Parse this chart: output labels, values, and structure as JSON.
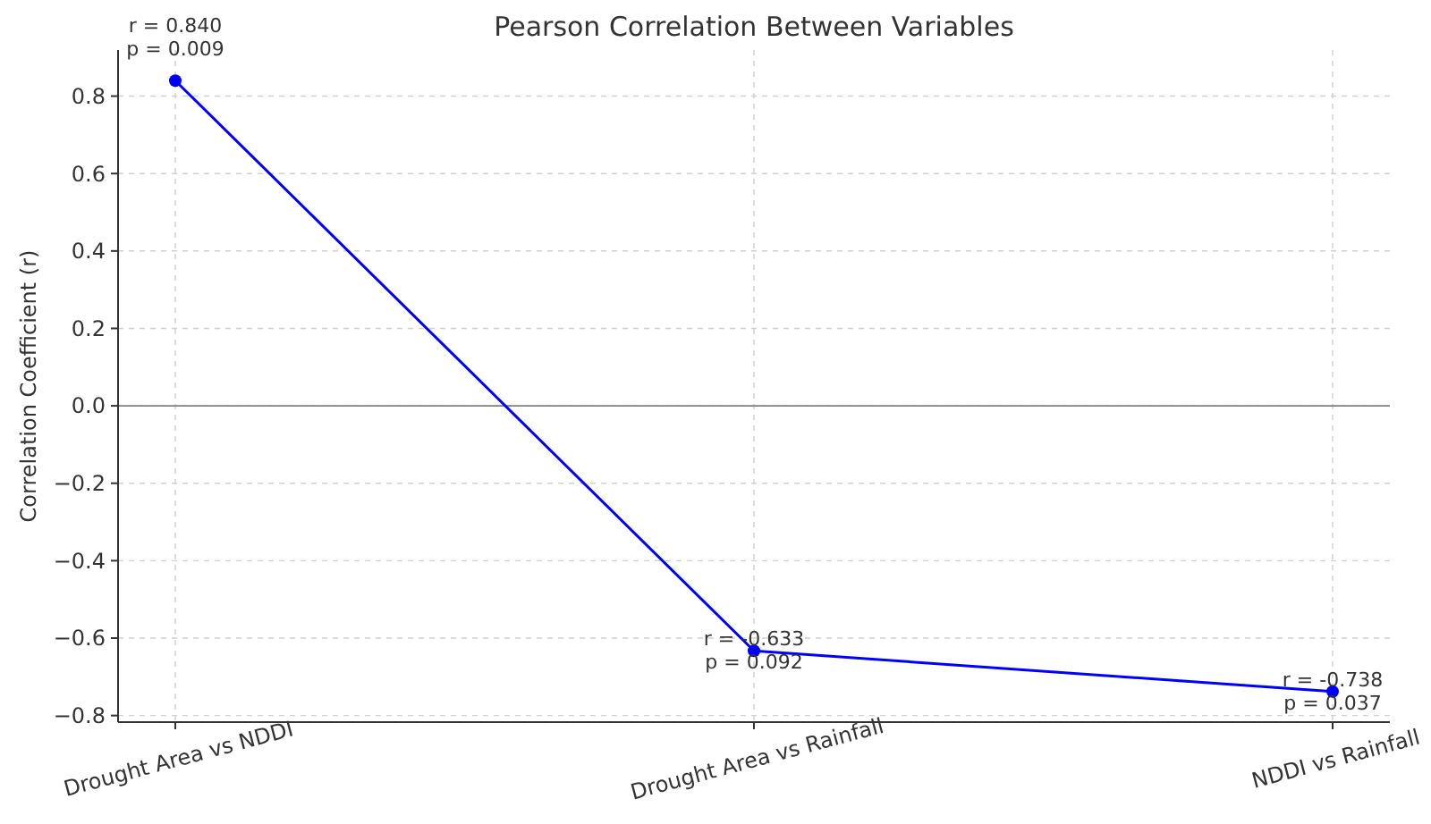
{
  "chart_data": {
    "type": "line",
    "title": "Pearson Correlation Between Variables",
    "ylabel": "Correlation Coefficient (r)",
    "categories": [
      "Drought Area vs NDDI",
      "Drought Area vs Rainfall",
      "NDDI vs Rainfall"
    ],
    "series": [
      {
        "color": "#0000ff",
        "values": [
          0.84,
          -0.633,
          -0.738
        ]
      }
    ],
    "ylim": [
      -0.817,
      0.919
    ],
    "yticks": [
      {
        "value": -0.8,
        "label": "−0.8"
      },
      {
        "value": -0.6,
        "label": "−0.6"
      },
      {
        "value": -0.4,
        "label": "−0.4"
      },
      {
        "value": -0.2,
        "label": "−0.2"
      },
      {
        "value": 0,
        "label": "0.0"
      },
      {
        "value": 0.2,
        "label": "0.2"
      },
      {
        "value": 0.4,
        "label": "0.4"
      },
      {
        "value": 0.6,
        "label": "0.6"
      },
      {
        "value": 0.8,
        "label": "0.8"
      }
    ],
    "ref_lines": [
      {
        "axis": "y",
        "value": 0,
        "color": "#808080"
      }
    ],
    "annotations": [
      {
        "text": "r = 0.840\np = 0.009",
        "x": "Drought Area vs NDDI",
        "y": 0.84
      },
      {
        "text": "r = -0.633\np = 0.092",
        "x": "Drought Area vs Rainfall",
        "y": -0.633
      },
      {
        "text": "r = -0.738\np = 0.037",
        "x": "NDDI vs Rainfall",
        "y": -0.738
      }
    ],
    "grid": true,
    "marker": "circle",
    "line_style": "solid"
  }
}
